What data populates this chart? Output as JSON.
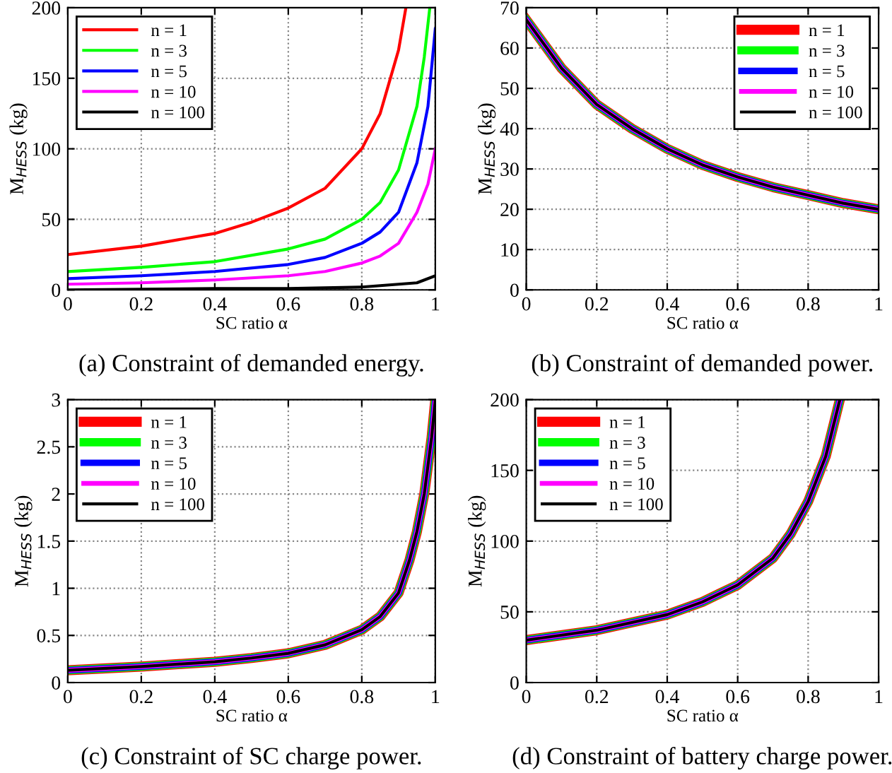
{
  "chart_data": [
    {
      "type": "line",
      "title": "(a) Constraint of demanded energy.",
      "xlabel": "SC ratio α",
      "ylabel": "M$_{HESS}$ (kg)",
      "xlim": [
        0,
        1
      ],
      "ylim": [
        0,
        200
      ],
      "xticks": [
        0,
        0.2,
        0.4,
        0.6,
        0.8,
        1
      ],
      "yticks": [
        0,
        50,
        100,
        150,
        200
      ],
      "grid": true,
      "legend": "top left",
      "line_style": "solid",
      "series": [
        {
          "name": "n = 1",
          "color": "#ff0000",
          "x": [
            0,
            0.2,
            0.4,
            0.5,
            0.6,
            0.7,
            0.8,
            0.85,
            0.9,
            0.92
          ],
          "values": [
            25,
            31,
            40,
            48,
            58,
            72,
            100,
            125,
            170,
            200
          ]
        },
        {
          "name": "n = 3",
          "color": "#00ff00",
          "x": [
            0,
            0.2,
            0.4,
            0.6,
            0.7,
            0.8,
            0.85,
            0.9,
            0.95,
            0.97,
            0.985
          ],
          "values": [
            13,
            16,
            20,
            29,
            36,
            50,
            62,
            85,
            130,
            165,
            200
          ]
        },
        {
          "name": "n = 5",
          "color": "#0000ff",
          "x": [
            0,
            0.2,
            0.4,
            0.6,
            0.7,
            0.8,
            0.85,
            0.9,
            0.95,
            0.98,
            1
          ],
          "values": [
            8,
            10,
            13,
            18,
            23,
            33,
            41,
            55,
            90,
            130,
            185
          ]
        },
        {
          "name": "n = 10",
          "color": "#ff00ff",
          "x": [
            0,
            0.2,
            0.4,
            0.6,
            0.7,
            0.8,
            0.85,
            0.9,
            0.95,
            0.98,
            1
          ],
          "values": [
            4,
            5,
            7,
            10,
            13,
            19,
            24,
            33,
            55,
            75,
            100
          ]
        },
        {
          "name": "n = 100",
          "color": "#000000",
          "x": [
            0,
            0.4,
            0.6,
            0.8,
            0.9,
            0.95,
            1
          ],
          "values": [
            0,
            1,
            1,
            2,
            4,
            5,
            10
          ]
        }
      ]
    },
    {
      "type": "line",
      "title": "(b) Constraint of demanded power.",
      "xlabel": "SC ratio α",
      "ylabel": "M$_{HESS}$ (kg)",
      "xlim": [
        0,
        1
      ],
      "ylim": [
        0,
        70
      ],
      "xticks": [
        0,
        0.2,
        0.4,
        0.6,
        0.8,
        1
      ],
      "yticks": [
        0,
        10,
        20,
        30,
        40,
        50,
        60,
        70
      ],
      "grid": true,
      "legend": "top right",
      "line_style": "solid",
      "x": [
        0,
        0.1,
        0.2,
        0.3,
        0.4,
        0.5,
        0.6,
        0.7,
        0.8,
        0.9,
        1
      ],
      "series": [
        {
          "name": "n = 1",
          "color": "#ff0000",
          "values": [
            67,
            55,
            46,
            40,
            35,
            31,
            28,
            25.5,
            23.5,
            21.5,
            20
          ]
        },
        {
          "name": "n = 3",
          "color": "#00ff00",
          "values": [
            67,
            55,
            46,
            40,
            35,
            31,
            28,
            25.5,
            23.5,
            21.5,
            20
          ]
        },
        {
          "name": "n = 5",
          "color": "#0000ff",
          "values": [
            67,
            55,
            46,
            40,
            35,
            31,
            28,
            25.5,
            23.5,
            21.5,
            20
          ]
        },
        {
          "name": "n = 10",
          "color": "#ff00ff",
          "values": [
            67,
            55,
            46,
            40,
            35,
            31,
            28,
            25.5,
            23.5,
            21.5,
            20
          ]
        },
        {
          "name": "n = 100",
          "color": "#000000",
          "values": [
            67,
            55,
            46,
            40,
            35,
            31,
            28,
            25.5,
            23.5,
            21.5,
            20
          ]
        }
      ]
    },
    {
      "type": "line",
      "title": "(c) Constraint of SC charge power.",
      "xlabel": "SC ratio α",
      "ylabel": "M$_{HESS}$ (kg)",
      "xlim": [
        0,
        1
      ],
      "ylim": [
        0,
        3
      ],
      "xticks": [
        0,
        0.2,
        0.4,
        0.6,
        0.8,
        1
      ],
      "yticks": [
        0,
        0.5,
        1,
        1.5,
        2,
        2.5,
        3
      ],
      "grid": true,
      "legend": "top left",
      "line_style": "solid",
      "x": [
        0,
        0.2,
        0.4,
        0.5,
        0.6,
        0.7,
        0.8,
        0.85,
        0.9,
        0.93,
        0.95,
        0.97,
        0.99,
        1
      ],
      "series": [
        {
          "name": "n = 1",
          "color": "#ff0000",
          "values": [
            0.13,
            0.17,
            0.22,
            0.26,
            0.31,
            0.4,
            0.56,
            0.7,
            0.95,
            1.3,
            1.6,
            2.0,
            2.6,
            3
          ]
        },
        {
          "name": "n = 3",
          "color": "#00ff00",
          "values": [
            0.13,
            0.17,
            0.22,
            0.26,
            0.31,
            0.4,
            0.56,
            0.7,
            0.95,
            1.3,
            1.6,
            2.0,
            2.6,
            3
          ]
        },
        {
          "name": "n = 5",
          "color": "#0000ff",
          "values": [
            0.13,
            0.17,
            0.22,
            0.26,
            0.31,
            0.4,
            0.56,
            0.7,
            0.95,
            1.3,
            1.6,
            2.0,
            2.6,
            3
          ]
        },
        {
          "name": "n = 10",
          "color": "#ff00ff",
          "values": [
            0.13,
            0.17,
            0.22,
            0.26,
            0.31,
            0.4,
            0.56,
            0.7,
            0.95,
            1.3,
            1.6,
            2.0,
            2.6,
            3
          ]
        },
        {
          "name": "n = 100",
          "color": "#000000",
          "values": [
            0.13,
            0.17,
            0.22,
            0.26,
            0.31,
            0.4,
            0.56,
            0.7,
            0.95,
            1.3,
            1.6,
            2.0,
            2.6,
            3
          ]
        }
      ]
    },
    {
      "type": "line",
      "title": "(d) Constraint of battery charge power.",
      "xlabel": "SC ratio α",
      "ylabel": "M$_{HESS}$ (kg)",
      "xlim": [
        0,
        1
      ],
      "ylim": [
        0,
        200
      ],
      "xticks": [
        0,
        0.2,
        0.4,
        0.6,
        0.8,
        1
      ],
      "yticks": [
        0,
        50,
        100,
        150,
        200
      ],
      "grid": true,
      "legend": "top left",
      "line_style": "solid",
      "x": [
        0,
        0.2,
        0.4,
        0.5,
        0.6,
        0.7,
        0.75,
        0.8,
        0.85,
        0.89
      ],
      "series": [
        {
          "name": "n = 1",
          "color": "#ff0000",
          "values": [
            30,
            37,
            48,
            57,
            69,
            88,
            105,
            128,
            160,
            200
          ]
        },
        {
          "name": "n = 3",
          "color": "#00ff00",
          "values": [
            30,
            37,
            48,
            57,
            69,
            88,
            105,
            128,
            160,
            200
          ]
        },
        {
          "name": "n = 5",
          "color": "#0000ff",
          "values": [
            30,
            37,
            48,
            57,
            69,
            88,
            105,
            128,
            160,
            200
          ]
        },
        {
          "name": "n = 10",
          "color": "#ff00ff",
          "values": [
            30,
            37,
            48,
            57,
            69,
            88,
            105,
            128,
            160,
            200
          ]
        },
        {
          "name": "n = 100",
          "color": "#000000",
          "values": [
            30,
            37,
            48,
            57,
            69,
            88,
            105,
            128,
            160,
            200
          ]
        }
      ]
    }
  ]
}
